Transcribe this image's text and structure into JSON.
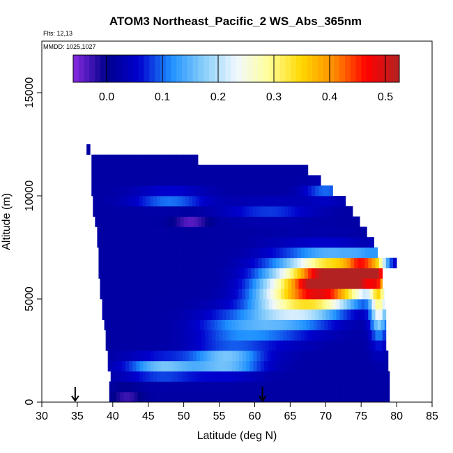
{
  "chart_data": {
    "type": "heatmap",
    "title": "ATOM3 Northeast_Pacific_2 WS_Abs_365nm",
    "annotations": [
      "Flts: 12,13",
      "MMDD: 1025,1027"
    ],
    "xlabel": "Latitude (deg N)",
    "ylabel": "Altitude (m)",
    "xlim": [
      30,
      85
    ],
    "ylim": [
      0,
      17500
    ],
    "x_ticks": [
      30,
      35,
      40,
      45,
      50,
      55,
      60,
      65,
      70,
      75,
      80,
      85
    ],
    "y_ticks": [
      0,
      5000,
      10000,
      15000
    ],
    "grid": false,
    "colorbar": {
      "placement": "top",
      "range": [
        -0.06,
        0.525
      ],
      "ticks": [
        0.0,
        0.1,
        0.2,
        0.3,
        0.4,
        0.5
      ],
      "tick_labels": [
        "0.0",
        "0.1",
        "0.2",
        "0.3",
        "0.4",
        "0.5"
      ],
      "colors": [
        "#8a2be2",
        "#00008b",
        "#0000cd",
        "#1e90ff",
        "#87cefa",
        "#f0f8ff",
        "#ffff99",
        "#ffd700",
        "#ff8c00",
        "#ff0000",
        "#b22222"
      ]
    },
    "flight_markers": [
      {
        "latitude": 34.7,
        "label": "arrow"
      },
      {
        "latitude": 61.1,
        "label": "arrow"
      }
    ],
    "value_field": {
      "background": 0.02,
      "layers": [
        {
          "alt_min": 0,
          "alt_max": 500,
          "lat_min": 39.5,
          "lat_max": 79.0
        },
        {
          "alt_min": 500,
          "alt_max": 1000,
          "lat_min": 39.5,
          "lat_max": 79.0
        },
        {
          "alt_min": 1000,
          "alt_max": 1500,
          "lat_min": 39.7,
          "lat_max": 79.0
        },
        {
          "alt_min": 1500,
          "alt_max": 2000,
          "lat_min": 39.3,
          "lat_max": 78.8
        },
        {
          "alt_min": 2000,
          "alt_max": 2500,
          "lat_min": 39.3,
          "lat_max": 78.8
        },
        {
          "alt_min": 2500,
          "alt_max": 3000,
          "lat_min": 39.0,
          "lat_max": 78.5
        },
        {
          "alt_min": 3000,
          "alt_max": 3500,
          "lat_min": 39.0,
          "lat_max": 78.5
        },
        {
          "alt_min": 3500,
          "alt_max": 4000,
          "lat_min": 38.8,
          "lat_max": 78.5
        },
        {
          "alt_min": 4000,
          "alt_max": 4500,
          "lat_min": 38.5,
          "lat_max": 78.5
        },
        {
          "alt_min": 4500,
          "alt_max": 5000,
          "lat_min": 38.5,
          "lat_max": 78.3
        },
        {
          "alt_min": 5000,
          "alt_max": 5500,
          "lat_min": 38.2,
          "lat_max": 78.3
        },
        {
          "alt_min": 5500,
          "alt_max": 6000,
          "lat_min": 38.2,
          "lat_max": 78.0
        },
        {
          "alt_min": 6000,
          "alt_max": 6500,
          "lat_min": 38.0,
          "lat_max": 78.0
        },
        {
          "alt_min": 6500,
          "alt_max": 7000,
          "lat_min": 38.0,
          "lat_max": 80.0
        },
        {
          "alt_min": 7000,
          "alt_max": 7500,
          "lat_min": 38.0,
          "lat_max": 77.3
        },
        {
          "alt_min": 7500,
          "alt_max": 8000,
          "lat_min": 37.8,
          "lat_max": 76.8
        },
        {
          "alt_min": 8000,
          "alt_max": 8500,
          "lat_min": 37.8,
          "lat_max": 75.8
        },
        {
          "alt_min": 8500,
          "alt_max": 9000,
          "lat_min": 37.5,
          "lat_max": 74.8
        },
        {
          "alt_min": 9000,
          "alt_max": 9500,
          "lat_min": 37.2,
          "lat_max": 73.8
        },
        {
          "alt_min": 9500,
          "alt_max": 10000,
          "lat_min": 37.2,
          "lat_max": 72.8
        },
        {
          "alt_min": 10000,
          "alt_max": 10500,
          "lat_min": 37.0,
          "lat_max": 71.0
        },
        {
          "alt_min": 10500,
          "alt_max": 11000,
          "lat_min": 37.0,
          "lat_max": 69.3
        },
        {
          "alt_min": 11000,
          "alt_max": 11500,
          "lat_min": 37.0,
          "lat_max": 67.5
        },
        {
          "alt_min": 11500,
          "alt_max": 12000,
          "lat_min": 37.0,
          "lat_max": 52.0
        },
        {
          "alt_min": 12000,
          "alt_max": 12500,
          "lat_min": 36.3,
          "lat_max": 36.8
        }
      ],
      "plumes": [
        {
          "lat": 75.5,
          "alt": 6300,
          "lat_width": 2.6,
          "alt_width": 650,
          "value": 0.5
        },
        {
          "lat": 72.0,
          "alt": 6000,
          "lat_width": 4.5,
          "alt_width": 1000,
          "value": 0.4
        },
        {
          "lat": 68.5,
          "alt": 5600,
          "lat_width": 4.5,
          "alt_width": 1300,
          "value": 0.3
        },
        {
          "lat": 64.0,
          "alt": 5200,
          "lat_width": 5.0,
          "alt_width": 1500,
          "value": 0.22
        },
        {
          "lat": 77.5,
          "alt": 5000,
          "lat_width": 1.2,
          "alt_width": 1700,
          "value": 0.28
        },
        {
          "lat": 56.0,
          "alt": 2000,
          "lat_width": 5.0,
          "alt_width": 600,
          "value": 0.18
        },
        {
          "lat": 47.0,
          "alt": 1700,
          "lat_width": 5.0,
          "alt_width": 500,
          "value": 0.16
        },
        {
          "lat": 58.0,
          "alt": 3600,
          "lat_width": 6.0,
          "alt_width": 900,
          "value": 0.12
        },
        {
          "lat": 48.0,
          "alt": 9900,
          "lat_width": 5.0,
          "alt_width": 350,
          "value": 0.12
        },
        {
          "lat": 62.0,
          "alt": 9300,
          "lat_width": 6.0,
          "alt_width": 400,
          "value": 0.08
        },
        {
          "lat": 70.0,
          "alt": 10200,
          "lat_width": 3.0,
          "alt_width": 400,
          "value": 0.1
        },
        {
          "lat": 51.0,
          "alt": 8800,
          "lat_width": 2.5,
          "alt_width": 300,
          "value": -0.04
        },
        {
          "lat": 42.0,
          "alt": 400,
          "lat_width": 2.0,
          "alt_width": 300,
          "value": -0.04
        }
      ]
    }
  }
}
